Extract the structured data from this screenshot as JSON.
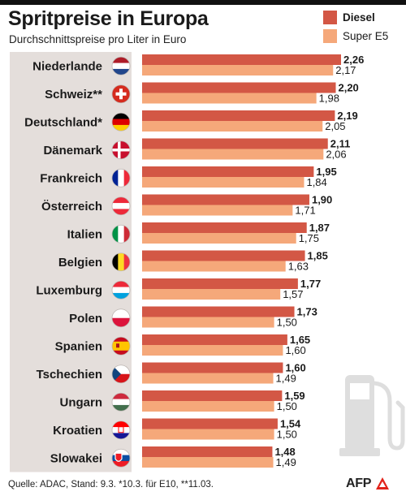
{
  "header": {
    "title": "Spritpreise in Europa",
    "subtitle": "Durchschnittspreise pro Liter in Euro"
  },
  "legend": {
    "diesel_label": "Diesel",
    "super_label": "Super E5"
  },
  "colors": {
    "diesel": "#d35745",
    "super": "#f5a87a",
    "label_panel": "#e4dedb",
    "pump_icon": "#dedede"
  },
  "chart_data": {
    "type": "bar",
    "orientation": "horizontal",
    "title": "Spritpreise in Europa",
    "subtitle": "Durchschnittspreise pro Liter in Euro",
    "categories": [
      "Niederlande",
      "Schweiz**",
      "Deutschland*",
      "Dänemark",
      "Frankreich",
      "Österreich",
      "Italien",
      "Belgien",
      "Luxemburg",
      "Polen",
      "Spanien",
      "Tschechien",
      "Ungarn",
      "Kroatien",
      "Slowakei"
    ],
    "flag_icons": [
      "netherlands-flag-icon",
      "switzerland-flag-icon",
      "germany-flag-icon",
      "denmark-flag-icon",
      "france-flag-icon",
      "austria-flag-icon",
      "italy-flag-icon",
      "belgium-flag-icon",
      "luxembourg-flag-icon",
      "poland-flag-icon",
      "spain-flag-icon",
      "czechia-flag-icon",
      "hungary-flag-icon",
      "croatia-flag-icon",
      "slovakia-flag-icon"
    ],
    "series": [
      {
        "name": "Diesel",
        "values": [
          2.26,
          2.2,
          2.19,
          2.11,
          1.95,
          1.9,
          1.87,
          1.85,
          1.77,
          1.73,
          1.65,
          1.6,
          1.59,
          1.54,
          1.48
        ],
        "labels": [
          "2,26",
          "2,20",
          "2,19",
          "2,11",
          "1,95",
          "1,90",
          "1,87",
          "1,85",
          "1,77",
          "1,73",
          "1,65",
          "1,60",
          "1,59",
          "1,54",
          "1,48"
        ]
      },
      {
        "name": "Super E5",
        "values": [
          2.17,
          1.98,
          2.05,
          2.06,
          1.84,
          1.71,
          1.75,
          1.63,
          1.57,
          1.5,
          1.6,
          1.49,
          1.5,
          1.5,
          1.49
        ],
        "labels": [
          "2,17",
          "1,98",
          "2,05",
          "2,06",
          "1,84",
          "1,71",
          "1,75",
          "1,63",
          "1,57",
          "1,50",
          "1,60",
          "1,49",
          "1,50",
          "1,50",
          "1,49"
        ]
      }
    ],
    "xlim": [
      0,
      2.26
    ],
    "grid": false,
    "legend_position": "top-right"
  },
  "footer": {
    "source": "Quelle: ADAC, Stand: 9.3. *10.3. für E10, **11.03.",
    "credit": "AFP"
  },
  "icons": {
    "fuel_pump": "fuel-pump-icon",
    "afp_logo": "afp-logo-icon"
  }
}
